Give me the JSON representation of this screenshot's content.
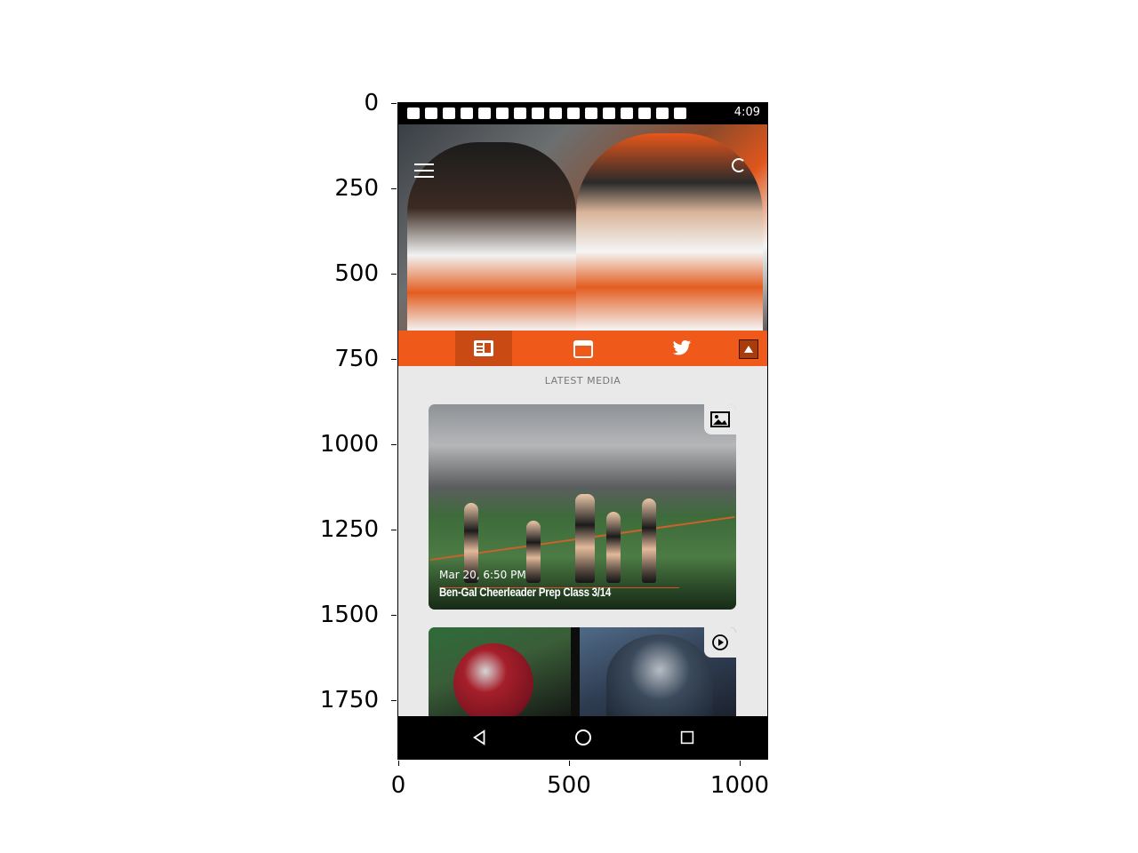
{
  "axes": {
    "y_ticks": [
      "0",
      "250",
      "500",
      "750",
      "1000",
      "1250",
      "1500",
      "1750"
    ],
    "x_ticks": [
      "0",
      "500",
      "1000"
    ]
  },
  "status_bar": {
    "time": "4:09"
  },
  "header": {
    "menu_icon": "hamburger-menu-icon",
    "refresh_icon": "refresh-icon"
  },
  "tabs": [
    {
      "icon": "news-icon",
      "active": true
    },
    {
      "icon": "calendar-icon",
      "active": false
    },
    {
      "icon": "twitter-icon",
      "active": false
    }
  ],
  "accent_color": "#ef5a1a",
  "section": {
    "title": "LATEST MEDIA"
  },
  "cards": [
    {
      "date": "Mar 20, 6:50 PM",
      "title": "Ben-Gal Cheerleader Prep Class 3/14",
      "type_icon": "image-icon"
    },
    {
      "type_icon": "play-icon"
    }
  ],
  "nav": {
    "back_icon": "back-icon",
    "home_icon": "home-icon",
    "recents_icon": "recents-icon"
  }
}
